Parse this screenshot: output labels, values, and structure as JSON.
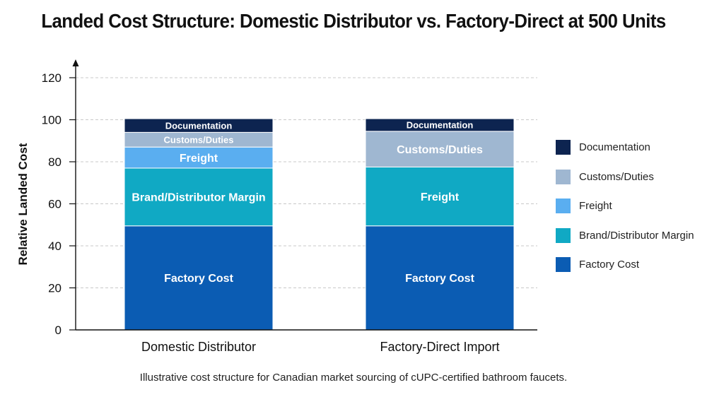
{
  "chart_data": {
    "type": "bar",
    "stacked": true,
    "title": "Landed Cost Structure: Domestic Distributor vs. Factory-Direct at 500 Units",
    "ylabel": "Relative Landed Cost",
    "xlabel": "",
    "ylim": [
      0,
      120
    ],
    "yticks": [
      0,
      20,
      40,
      60,
      80,
      100,
      120
    ],
    "grid": true,
    "legend_position": "right",
    "categories": [
      "Domestic Distributor",
      "Factory-Direct Import"
    ],
    "stacks": [
      {
        "category": "Domestic Distributor",
        "segments": [
          {
            "label": "Factory Cost",
            "value": 49.5,
            "color": "#0b5cb3"
          },
          {
            "label": "Brand/Distributor Margin",
            "value": 27.5,
            "color": "#10a9c4"
          },
          {
            "label": "Freight",
            "value": 10,
            "color": "#5aaef0"
          },
          {
            "label": "Customs/Duties",
            "value": 7,
            "color": "#9fb7d1"
          },
          {
            "label": "Documentation",
            "value": 6.5,
            "color": "#0d2450"
          }
        ]
      },
      {
        "category": "Factory-Direct Import",
        "segments": [
          {
            "label": "Factory Cost",
            "value": 49.5,
            "color": "#0b5cb3"
          },
          {
            "label": "Freight",
            "value": 28,
            "color": "#10a9c4"
          },
          {
            "label": "Customs/Duties",
            "value": 17,
            "color": "#9fb7d1"
          },
          {
            "label": "Documentation",
            "value": 6,
            "color": "#0d2450"
          }
        ]
      }
    ],
    "legend": [
      {
        "label": "Documentation",
        "color": "#0d2450"
      },
      {
        "label": "Customs/Duties",
        "color": "#9fb7d1"
      },
      {
        "label": "Freight",
        "color": "#5aaef0"
      },
      {
        "label": "Brand/Distributor Margin",
        "color": "#10a9c4"
      },
      {
        "label": "Factory Cost",
        "color": "#0b5cb3"
      }
    ],
    "caption": "Illustrative cost structure for Canadian market sourcing of cUPC-certified bathroom faucets."
  }
}
